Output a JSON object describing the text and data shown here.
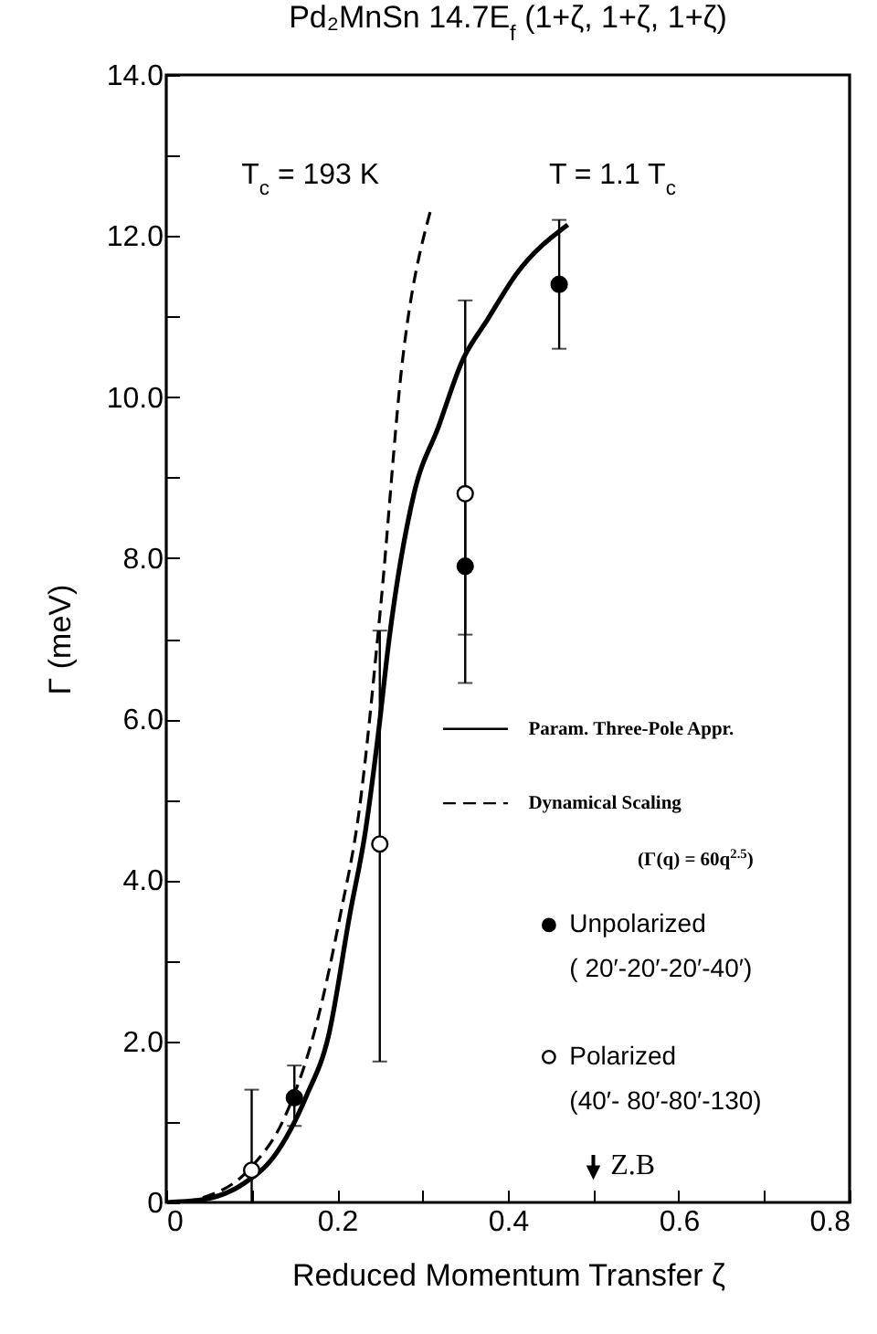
{
  "chart_data": {
    "type": "scatter",
    "title": "Pd₂MnSn     14.7E$_{f}$   (1+ζ, 1+ζ, 1+ζ)",
    "xlabel": "Reduced  Momentum  Transfer  ζ",
    "ylabel": "Γ (meV)",
    "xlim": [
      0,
      0.8
    ],
    "ylim": [
      0,
      14
    ],
    "xticks": [
      0,
      {
        "value": 0.1,
        "label": null
      },
      0.2,
      {
        "value": 0.3,
        "label": null
      },
      0.4,
      {
        "value": 0.5,
        "label": null
      },
      0.6,
      {
        "value": 0.7,
        "label": null
      },
      0.8
    ],
    "yticks": [
      0,
      {
        "value": 1,
        "label": null
      },
      {
        "value": 2,
        "label": "2.0"
      },
      {
        "value": 3,
        "label": null
      },
      {
        "value": 4,
        "label": "4.0"
      },
      {
        "value": 5,
        "label": null
      },
      {
        "value": 6,
        "label": "6.0"
      },
      {
        "value": 7,
        "label": null
      },
      {
        "value": 8,
        "label": "8.0"
      },
      {
        "value": 9,
        "label": null
      },
      {
        "value": 10,
        "label": "10.0"
      },
      {
        "value": 11,
        "label": null
      },
      {
        "value": 12,
        "label": "12.0"
      },
      {
        "value": 13,
        "label": null
      },
      {
        "value": 14,
        "label": "14.0"
      }
    ],
    "legend": "right",
    "grid": false,
    "series": [
      {
        "name": "Param. Three-Pole Appr.",
        "type": "line",
        "color": "#000000",
        "line_style": "solid",
        "marker": "none",
        "x": [
          0,
          0.04,
          0.09,
          0.126,
          0.164,
          0.19,
          0.215,
          0.233,
          0.248,
          0.261,
          0.29,
          0.319,
          0.347,
          0.376,
          0.41,
          0.47
        ],
        "values": [
          0,
          0.03,
          0.23,
          0.57,
          1.32,
          2.07,
          3.58,
          4.6,
          5.8,
          7.0,
          8.8,
          9.64,
          10.46,
          10.96,
          11.53,
          12.14
        ]
      },
      {
        "name": "Dynamical Scaling",
        "type": "line",
        "color": "#000000",
        "line_style": "dashed",
        "marker": "none",
        "x": [
          0.02,
          0.04,
          0.097,
          0.14,
          0.176,
          0.204,
          0.225,
          0.251,
          0.276,
          0.309
        ],
        "values": [
          0,
          0.05,
          0.41,
          1.09,
          2.22,
          3.58,
          4.8,
          7.4,
          10.4,
          12.3
        ]
      },
      {
        "name": "Unpolarized",
        "color": "#000000",
        "marker": "circle",
        "x": [
          0.15,
          0.35,
          0.46
        ],
        "values": [
          1.3,
          7.9,
          11.4
        ],
        "errors": [
          [
            0.95,
            1.7
          ],
          [
            7.05,
            8.8
          ],
          [
            10.6,
            12.2
          ]
        ]
      },
      {
        "name": "Polarized",
        "color": "#ffffff",
        "marker": "circle",
        "x": [
          0.1,
          0.25,
          0.35
        ],
        "values": [
          0.4,
          4.45,
          8.8
        ],
        "errors": [
          [
            0,
            1.4
          ],
          [
            1.75,
            7.1
          ],
          [
            6.45,
            11.2
          ]
        ]
      }
    ],
    "annotations": [
      "T$_{c}$ = 193 K",
      "T = 1.1 T$_{c}$",
      "(Γ(q) = 60q$^{2.5}$)",
      "( 20′-20′-20′-40′)",
      "(40′- 80′-80′-130)",
      "Z.B"
    ]
  }
}
